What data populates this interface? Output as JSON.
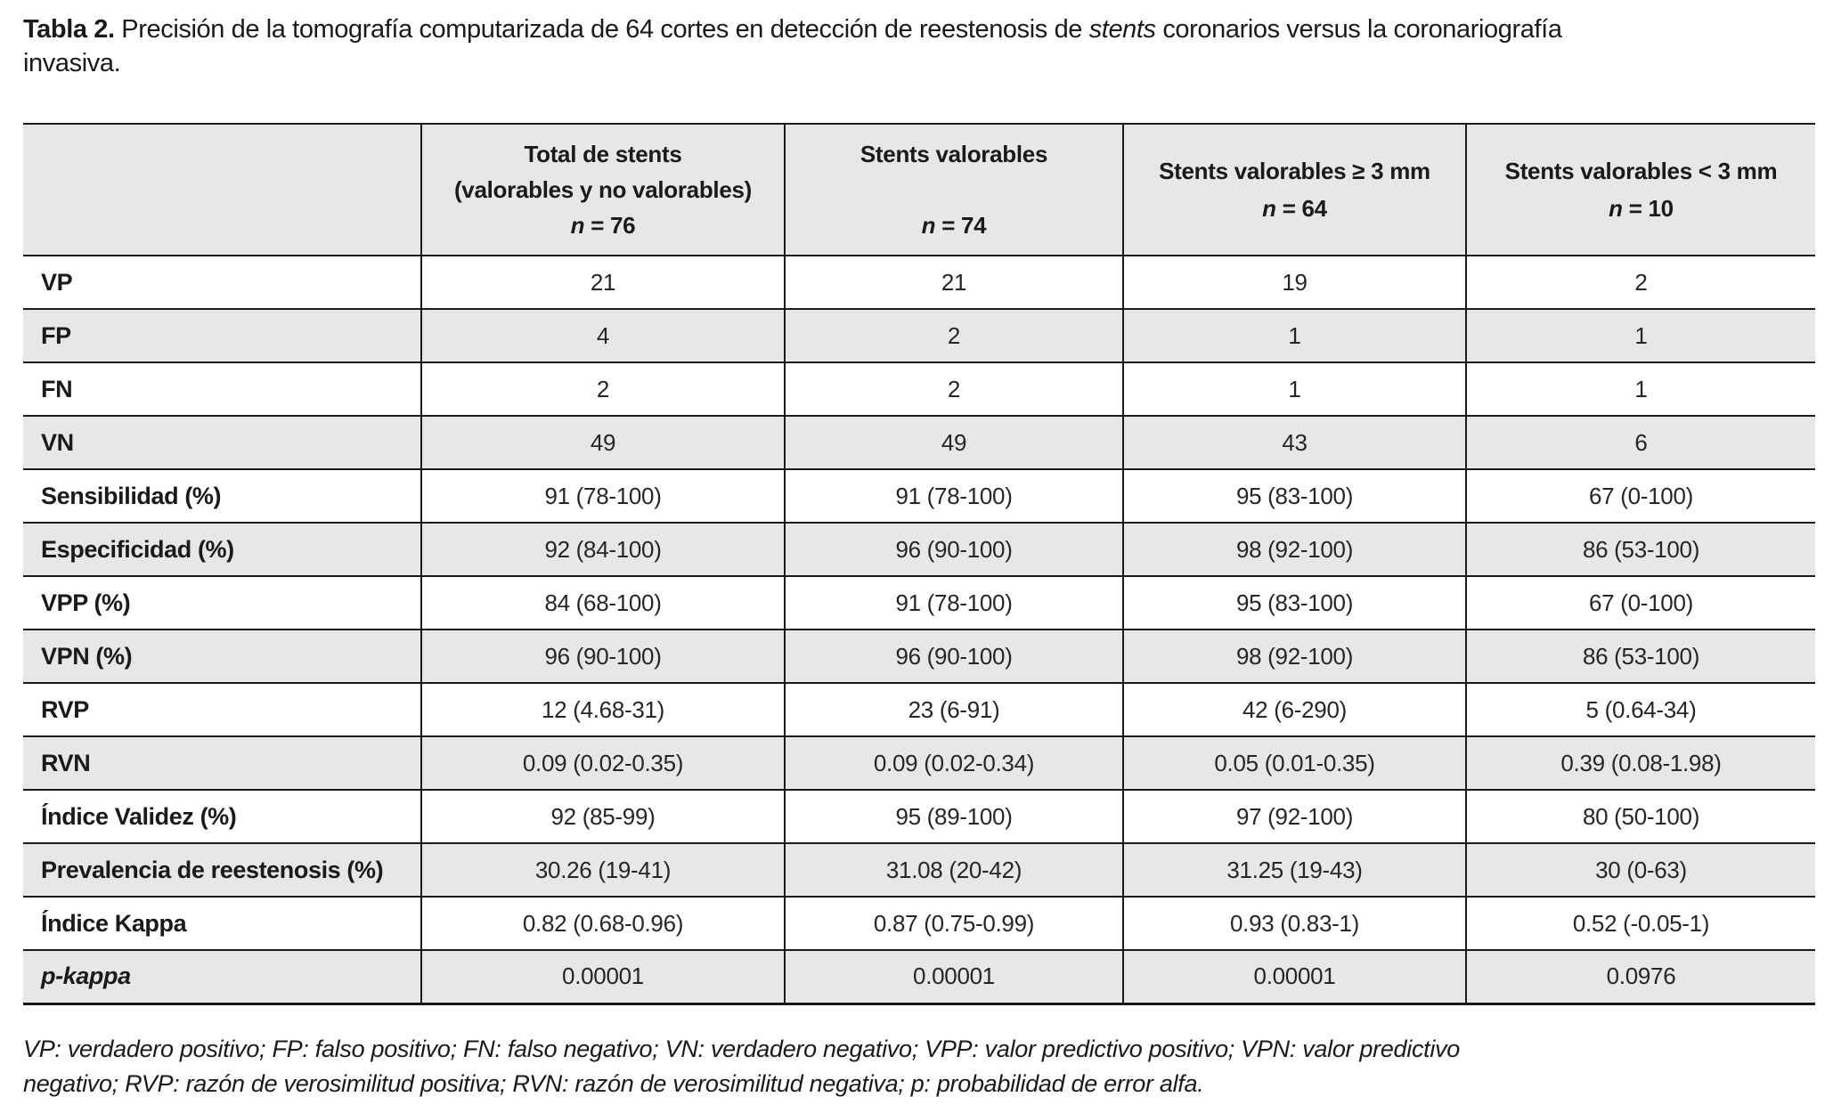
{
  "title": {
    "bold_label": "Tabla 2.",
    "segment_1": " Precisión de la tomografía computarizada de 64 cortes en detección de reestenosis de ",
    "italic_word": "stents",
    "segment_2": " coronarios versus la coronariografía",
    "line_2": "invasiva."
  },
  "table": {
    "corner": "",
    "columns": [
      {
        "lines": [
          "Total de stents",
          "(valorables y no valorables)"
        ],
        "n_italic": "n",
        "n_text": " = 76"
      },
      {
        "lines": [
          "Stents valorables"
        ],
        "n_italic": "n",
        "n_text": " = 74"
      },
      {
        "lines": [
          "Stents valorables ≥ 3 mm"
        ],
        "n_italic": "n",
        "n_text": " = 64"
      },
      {
        "lines": [
          "Stents valorables < 3 mm"
        ],
        "n_italic": "n",
        "n_text": " = 10"
      }
    ],
    "rows": [
      {
        "label": "VP",
        "italic": false,
        "values": [
          "21",
          "21",
          "19",
          "2"
        ]
      },
      {
        "label": "FP",
        "italic": false,
        "values": [
          "4",
          "2",
          "1",
          "1"
        ]
      },
      {
        "label": "FN",
        "italic": false,
        "values": [
          "2",
          "2",
          "1",
          "1"
        ]
      },
      {
        "label": "VN",
        "italic": false,
        "values": [
          "49",
          "49",
          "43",
          "6"
        ]
      },
      {
        "label": "Sensibilidad (%)",
        "italic": false,
        "values": [
          "91 (78-100)",
          "91 (78-100)",
          "95 (83-100)",
          "67 (0-100)"
        ]
      },
      {
        "label": "Especificidad (%)",
        "italic": false,
        "values": [
          "92 (84-100)",
          "96 (90-100)",
          "98 (92-100)",
          "86 (53-100)"
        ]
      },
      {
        "label": "VPP (%)",
        "italic": false,
        "values": [
          "84 (68-100)",
          "91 (78-100)",
          "95 (83-100)",
          "67 (0-100)"
        ]
      },
      {
        "label": "VPN (%)",
        "italic": false,
        "values": [
          "96 (90-100)",
          "96 (90-100)",
          "98 (92-100)",
          "86 (53-100)"
        ]
      },
      {
        "label": "RVP",
        "italic": false,
        "values": [
          "12 (4.68-31)",
          "23 (6-91)",
          "42 (6-290)",
          "5 (0.64-34)"
        ]
      },
      {
        "label": "RVN",
        "italic": false,
        "values": [
          "0.09 (0.02-0.35)",
          "0.09 (0.02-0.34)",
          "0.05 (0.01-0.35)",
          "0.39 (0.08-1.98)"
        ]
      },
      {
        "label": "Índice Validez (%)",
        "italic": false,
        "values": [
          "92 (85-99)",
          "95 (89-100)",
          "97 (92-100)",
          "80 (50-100)"
        ]
      },
      {
        "label": "Prevalencia de reestenosis (%)",
        "italic": false,
        "values": [
          "30.26 (19-41)",
          "31.08 (20-42)",
          "31.25 (19-43)",
          "30 (0-63)"
        ]
      },
      {
        "label": "Índice Kappa",
        "italic": false,
        "values": [
          "0.82 (0.68-0.96)",
          "0.87 (0.75-0.99)",
          "0.93 (0.83-1)",
          "0.52 (-0.05-1)"
        ]
      },
      {
        "label": "p-kappa",
        "italic": true,
        "values": [
          "0.00001",
          "0.00001",
          "0.00001",
          "0.0976"
        ]
      }
    ]
  },
  "footnote": {
    "line_1": "VP: verdadero positivo; FP: falso positivo; FN: falso negativo; VN: verdadero negativo; VPP: valor predictivo positivo; VPN: valor predictivo",
    "line_2": "negativo; RVP: razón de verosimilitud positiva; RVN: razón de verosimilitud negativa; p: probabilidad de error alfa."
  },
  "colors": {
    "row_shade": "#e6e7e9",
    "border": "#1a1a1a",
    "text": "#1a1a1a"
  }
}
